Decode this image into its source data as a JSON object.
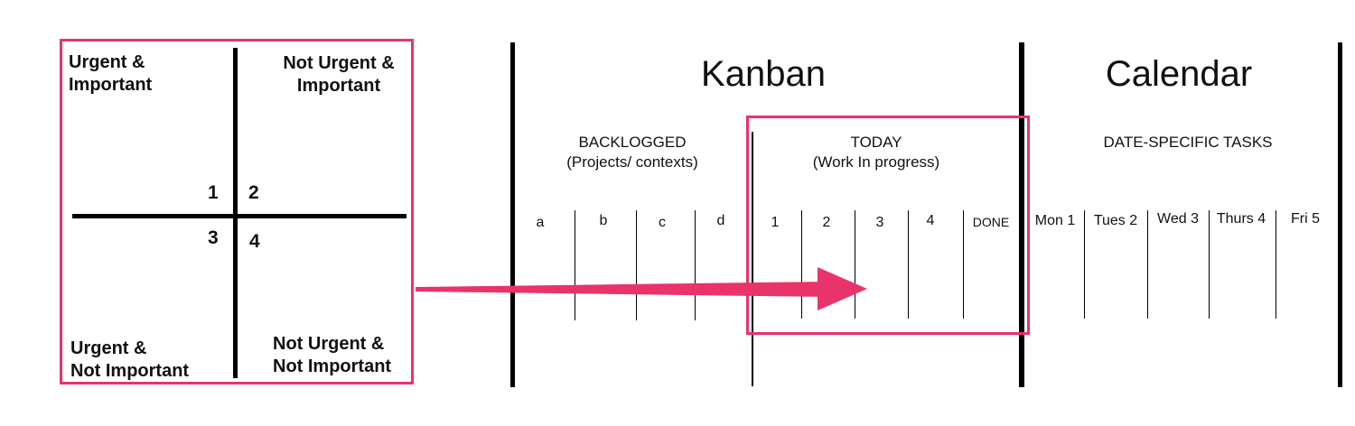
{
  "colors": {
    "accent": "#e8336b",
    "line": "#000000"
  },
  "matrix": {
    "quadrants": [
      {
        "label_lines": [
          "Urgent &",
          "Important"
        ],
        "number": "1"
      },
      {
        "label_lines": [
          "Not Urgent &",
          "Important"
        ],
        "number": "2"
      },
      {
        "label_lines": [
          "Urgent &",
          "Not Important"
        ],
        "number": "3"
      },
      {
        "label_lines": [
          "Not Urgent &",
          "Not Important"
        ],
        "number": "4"
      }
    ]
  },
  "kanban": {
    "title": "Kanban",
    "backlogged": {
      "label_lines": [
        "BACKLOGGED",
        "(Projects/ contexts)"
      ],
      "columns": [
        "a",
        "b",
        "c",
        "d"
      ]
    },
    "today": {
      "label_lines": [
        "TODAY",
        "(Work In progress)"
      ],
      "columns": [
        "1",
        "2",
        "3",
        "4",
        "DONE"
      ]
    }
  },
  "calendar": {
    "title": "Calendar",
    "label": "DATE-SPECIFIC TASKS",
    "columns": [
      "Mon 1",
      "Tues 2",
      "Wed 3",
      "Thurs 4",
      "Fri 5"
    ]
  }
}
